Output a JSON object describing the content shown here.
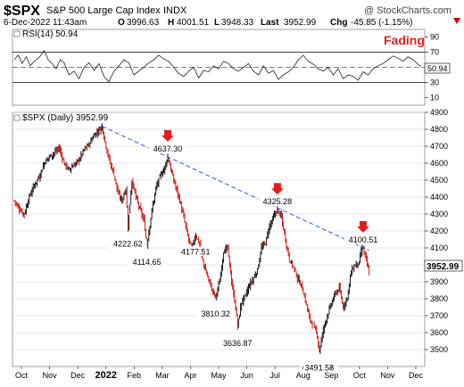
{
  "header": {
    "symbol": "$SPX",
    "name": "S&P 500 Large Cap Index",
    "exchange": "INDX",
    "site": "@ StockCharts.com",
    "datetime": "6-Dec-2022 11:43am",
    "ohlc": {
      "o_label": "O",
      "o": "3996.63",
      "h_label": "H",
      "h": "4001.51",
      "l_label": "L",
      "l": "3948.33",
      "last_label": "Last",
      "last": "3952.99",
      "chg_label": "Chg",
      "chg": "-45.85 (-1.15%)"
    },
    "chg_color": "#cc0000"
  },
  "rsi_panel": {
    "label": "RSI(14) 50.94",
    "annotation": "Fading",
    "annotation_color": "#e02020",
    "current_badge": "50.94",
    "ticks": [
      "90",
      "70",
      "50",
      "30",
      "10"
    ]
  },
  "price_panel": {
    "label": "$SPX (Daily) 3952.99",
    "current_badge": "3952.99",
    "ticks": [
      "4900",
      "4800",
      "4700",
      "4600",
      "4500",
      "4400",
      "4300",
      "4200",
      "4100",
      "4000",
      "3900",
      "3800",
      "3700",
      "3600",
      "3500"
    ]
  },
  "x_axis": {
    "labels": [
      "Oct",
      "Nov",
      "Dec",
      "2022",
      "Feb",
      "Mar",
      "Apr",
      "May",
      "Jun",
      "Jul",
      "Aug",
      "Sep",
      "Oct",
      "Nov",
      "Dec"
    ]
  },
  "colors": {
    "up": "#000000",
    "down": "#cc0000",
    "trendline": "#3050e0",
    "arrow": "#e02020"
  },
  "chart_data": [
    {
      "type": "line",
      "title": "RSI(14)",
      "ylim": [
        0,
        100
      ],
      "reference_lines": [
        70,
        50,
        30
      ],
      "last_value": 50.94,
      "series": [
        {
          "name": "RSI(14)",
          "points": [
            [
              0,
              60
            ],
            [
              4,
              66
            ],
            [
              8,
              55
            ],
            [
              12,
              64
            ],
            [
              16,
              52
            ],
            [
              20,
              58
            ],
            [
              25,
              63
            ],
            [
              30,
              72
            ],
            [
              34,
              60
            ],
            [
              38,
              55
            ],
            [
              42,
              48
            ],
            [
              46,
              60
            ],
            [
              50,
              56
            ],
            [
              55,
              40
            ],
            [
              60,
              45
            ],
            [
              65,
              35
            ],
            [
              70,
              50
            ],
            [
              75,
              56
            ],
            [
              80,
              46
            ],
            [
              85,
              55
            ],
            [
              90,
              38
            ],
            [
              95,
              31
            ],
            [
              100,
              45
            ],
            [
              105,
              52
            ],
            [
              110,
              60
            ],
            [
              115,
              56
            ],
            [
              120,
              40
            ],
            [
              125,
              45
            ],
            [
              130,
              50
            ],
            [
              135,
              56
            ],
            [
              140,
              60
            ],
            [
              145,
              66
            ],
            [
              150,
              61
            ],
            [
              155,
              58
            ],
            [
              160,
              50
            ],
            [
              165,
              42
            ],
            [
              170,
              38
            ],
            [
              175,
              45
            ],
            [
              180,
              50
            ],
            [
              185,
              36
            ],
            [
              190,
              46
            ],
            [
              195,
              44
            ],
            [
              200,
              52
            ],
            [
              205,
              48
            ],
            [
              210,
              58
            ],
            [
              215,
              55
            ],
            [
              220,
              48
            ],
            [
              225,
              45
            ],
            [
              230,
              50
            ],
            [
              235,
              55
            ],
            [
              240,
              45
            ],
            [
              245,
              40
            ],
            [
              250,
              52
            ],
            [
              255,
              42
            ],
            [
              260,
              46
            ],
            [
              265,
              34
            ],
            [
              270,
              40
            ],
            [
              275,
              44
            ],
            [
              280,
              50
            ],
            [
              285,
              60
            ],
            [
              290,
              66
            ],
            [
              295,
              58
            ],
            [
              300,
              54
            ],
            [
              305,
              48
            ],
            [
              310,
              45
            ],
            [
              315,
              50
            ],
            [
              320,
              40
            ],
            [
              325,
              48
            ],
            [
              330,
              35
            ],
            [
              335,
              40
            ],
            [
              340,
              38
            ],
            [
              345,
              33
            ],
            [
              350,
              44
            ],
            [
              355,
              40
            ],
            [
              360,
              48
            ],
            [
              365,
              52
            ],
            [
              370,
              55
            ],
            [
              375,
              60
            ],
            [
              380,
              65
            ],
            [
              385,
              62
            ],
            [
              390,
              58
            ],
            [
              395,
              64
            ],
            [
              400,
              60
            ],
            [
              405,
              54
            ],
            [
              408,
              50.94
            ]
          ]
        }
      ]
    },
    {
      "type": "candlestick",
      "title": "$SPX (Daily)",
      "ylim": [
        3400,
        4900
      ],
      "x_labels": [
        "Oct",
        "Nov",
        "Dec",
        "2022",
        "Feb",
        "Mar",
        "Apr",
        "May",
        "Jun",
        "Jul",
        "Aug",
        "Sep",
        "Oct",
        "Nov",
        "Dec"
      ],
      "last": 3952.99,
      "series": [
        {
          "name": "$SPX",
          "points": [
            [
              0,
              4380
            ],
            [
              5,
              4330
            ],
            [
              10,
              4300
            ],
            [
              15,
              4400
            ],
            [
              20,
              4470
            ],
            [
              25,
              4520
            ],
            [
              30,
              4600
            ],
            [
              35,
              4640
            ],
            [
              40,
              4660
            ],
            [
              45,
              4690
            ],
            [
              50,
              4600
            ],
            [
              55,
              4560
            ],
            [
              60,
              4590
            ],
            [
              65,
              4620
            ],
            [
              70,
              4680
            ],
            [
              75,
              4710
            ],
            [
              80,
              4766
            ],
            [
              85,
              4796
            ],
            [
              88,
              4818
            ],
            [
              92,
              4700
            ],
            [
              96,
              4600
            ],
            [
              100,
              4540
            ],
            [
              104,
              4420
            ],
            [
              108,
              4380
            ],
            [
              112,
              4450
            ],
            [
              114,
              4222.62
            ],
            [
              118,
              4500
            ],
            [
              122,
              4400
            ],
            [
              126,
              4330
            ],
            [
              130,
              4260
            ],
            [
              133,
              4114.65
            ],
            [
              138,
              4320
            ],
            [
              142,
              4450
            ],
            [
              146,
              4520
            ],
            [
              150,
              4560
            ],
            [
              154,
              4637.3
            ],
            [
              158,
              4540
            ],
            [
              162,
              4460
            ],
            [
              166,
              4380
            ],
            [
              170,
              4280
            ],
            [
              174,
              4170
            ],
            [
              178,
              4100
            ],
            [
              182,
              4177.51
            ],
            [
              186,
              4120
            ],
            [
              190,
              4000
            ],
            [
              194,
              3930
            ],
            [
              198,
              3860
            ],
            [
              202,
              3810.32
            ],
            [
              206,
              3900
            ],
            [
              210,
              4080
            ],
            [
              214,
              4100
            ],
            [
              218,
              3900
            ],
            [
              222,
              3750
            ],
            [
              224,
              3636.87
            ],
            [
              228,
              3780
            ],
            [
              232,
              3820
            ],
            [
              236,
              3880
            ],
            [
              240,
              3920
            ],
            [
              244,
              3970
            ],
            [
              248,
              4100
            ],
            [
              252,
              4130
            ],
            [
              256,
              4230
            ],
            [
              260,
              4280
            ],
            [
              264,
              4325.28
            ],
            [
              268,
              4280
            ],
            [
              272,
              4150
            ],
            [
              276,
              4030
            ],
            [
              280,
              3990
            ],
            [
              284,
              3920
            ],
            [
              288,
              3880
            ],
            [
              292,
              3790
            ],
            [
              296,
              3690
            ],
            [
              300,
              3640
            ],
            [
              304,
              3585
            ],
            [
              306,
              3491.58
            ],
            [
              310,
              3620
            ],
            [
              314,
              3700
            ],
            [
              318,
              3770
            ],
            [
              322,
              3830
            ],
            [
              326,
              3860
            ],
            [
              330,
              3750
            ],
            [
              334,
              3810
            ],
            [
              338,
              3960
            ],
            [
              342,
              4000
            ],
            [
              346,
              4010
            ],
            [
              348,
              4080.0
            ],
            [
              350,
              4100.51
            ],
            [
              352,
              4050
            ],
            [
              356,
              3952.99
            ]
          ]
        }
      ],
      "annotations": [
        {
          "label": "4637.30",
          "x": 154,
          "y": 4637.3,
          "arrow": true
        },
        {
          "label": "4325.28",
          "x": 264,
          "y": 4325.28,
          "arrow": true
        },
        {
          "label": "4100.51",
          "x": 350,
          "y": 4100.51,
          "arrow": true
        },
        {
          "label": "4222.62",
          "x": 114,
          "y": 4222.62,
          "arrow": false
        },
        {
          "label": "4114.65",
          "x": 133,
          "y": 4114.65,
          "arrow": false
        },
        {
          "label": "4177.51",
          "x": 182,
          "y": 4177.51,
          "arrow": false
        },
        {
          "label": "3810.32",
          "x": 202,
          "y": 3810.32,
          "arrow": false
        },
        {
          "label": "3636.87",
          "x": 224,
          "y": 3636.87,
          "arrow": false
        },
        {
          "label": "3491.58",
          "x": 306,
          "y": 3491.58,
          "arrow": false
        }
      ],
      "trendline": [
        [
          88,
          4818
        ],
        [
          356,
          4085
        ]
      ]
    }
  ]
}
